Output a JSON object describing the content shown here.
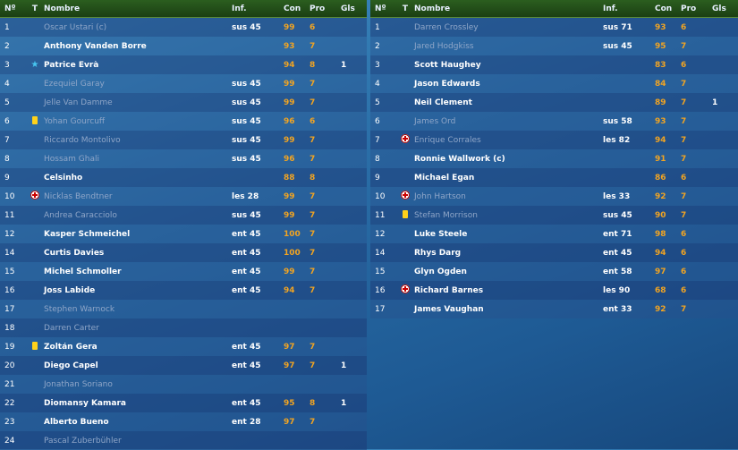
{
  "headers": {
    "num": "Nº",
    "t": "T",
    "name": "Nombre",
    "inf": "Inf.",
    "con": "Con",
    "pro": "Pro",
    "gls": "Gls"
  },
  "left_rows": [
    {
      "num": "1",
      "icon": "",
      "name": "Oscar Ustari (c)",
      "inf": "sus 45",
      "con": "99",
      "pro": "6",
      "gls": "",
      "dim": true
    },
    {
      "num": "2",
      "icon": "",
      "name": "Anthony Vanden Borre",
      "inf": "",
      "con": "93",
      "pro": "7",
      "gls": "",
      "dim": false
    },
    {
      "num": "3",
      "icon": "star",
      "name": "Patrice Evrà",
      "inf": "",
      "con": "94",
      "pro": "8",
      "gls": "1",
      "dim": false
    },
    {
      "num": "4",
      "icon": "",
      "name": "Ezequiel Garay",
      "inf": "sus 45",
      "con": "99",
      "pro": "7",
      "gls": "",
      "dim": true
    },
    {
      "num": "5",
      "icon": "",
      "name": "Jelle Van Damme",
      "inf": "sus 45",
      "con": "99",
      "pro": "7",
      "gls": "",
      "dim": true
    },
    {
      "num": "6",
      "icon": "card",
      "name": "Yohan Gourcuff",
      "inf": "sus 45",
      "con": "96",
      "pro": "6",
      "gls": "",
      "dim": true
    },
    {
      "num": "7",
      "icon": "",
      "name": "Riccardo Montolivo",
      "inf": "sus 45",
      "con": "99",
      "pro": "7",
      "gls": "",
      "dim": true
    },
    {
      "num": "8",
      "icon": "",
      "name": "Hossam Ghali",
      "inf": "sus 45",
      "con": "96",
      "pro": "7",
      "gls": "",
      "dim": true
    },
    {
      "num": "9",
      "icon": "",
      "name": "Celsinho",
      "inf": "",
      "con": "88",
      "pro": "8",
      "gls": "",
      "dim": false
    },
    {
      "num": "10",
      "icon": "injury",
      "name": "Nicklas Bendtner",
      "inf": "les 28",
      "con": "99",
      "pro": "7",
      "gls": "",
      "dim": true
    },
    {
      "num": "11",
      "icon": "",
      "name": "Andrea Caracciolo",
      "inf": "sus 45",
      "con": "99",
      "pro": "7",
      "gls": "",
      "dim": true
    },
    {
      "num": "12",
      "icon": "",
      "name": "Kasper Schmeichel",
      "inf": "ent 45",
      "con": "100",
      "pro": "7",
      "gls": "",
      "dim": false
    },
    {
      "num": "14",
      "icon": "",
      "name": "Curtis Davies",
      "inf": "ent 45",
      "con": "100",
      "pro": "7",
      "gls": "",
      "dim": false
    },
    {
      "num": "15",
      "icon": "",
      "name": "Michel Schmoller",
      "inf": "ent 45",
      "con": "99",
      "pro": "7",
      "gls": "",
      "dim": false
    },
    {
      "num": "16",
      "icon": "",
      "name": "Joss Labide",
      "inf": "ent 45",
      "con": "94",
      "pro": "7",
      "gls": "",
      "dim": false
    },
    {
      "num": "17",
      "icon": "",
      "name": "Stephen Warnock",
      "inf": "",
      "con": "",
      "pro": "",
      "gls": "",
      "dim": true
    },
    {
      "num": "18",
      "icon": "",
      "name": "Darren Carter",
      "inf": "",
      "con": "",
      "pro": "",
      "gls": "",
      "dim": true
    },
    {
      "num": "19",
      "icon": "card",
      "name": "Zoltán Gera",
      "inf": "ent 45",
      "con": "97",
      "pro": "7",
      "gls": "",
      "dim": false
    },
    {
      "num": "20",
      "icon": "",
      "name": "Diego Capel",
      "inf": "ent 45",
      "con": "97",
      "pro": "7",
      "gls": "1",
      "dim": false
    },
    {
      "num": "21",
      "icon": "",
      "name": "Jonathan Soriano",
      "inf": "",
      "con": "",
      "pro": "",
      "gls": "",
      "dim": true
    },
    {
      "num": "22",
      "icon": "",
      "name": "Diomansy Kamara",
      "inf": "ent 45",
      "con": "95",
      "pro": "8",
      "gls": "1",
      "dim": false
    },
    {
      "num": "23",
      "icon": "",
      "name": "Alberto Bueno",
      "inf": "ent 28",
      "con": "97",
      "pro": "7",
      "gls": "",
      "dim": false
    },
    {
      "num": "24",
      "icon": "",
      "name": "Pascal Zuberbühler",
      "inf": "",
      "con": "",
      "pro": "",
      "gls": "",
      "dim": true
    }
  ],
  "right_rows": [
    {
      "num": "1",
      "icon": "",
      "name": "Darren Crossley",
      "inf": "sus 71",
      "con": "93",
      "pro": "6",
      "gls": "",
      "dim": true
    },
    {
      "num": "2",
      "icon": "",
      "name": "Jared Hodgkiss",
      "inf": "sus 45",
      "con": "95",
      "pro": "7",
      "gls": "",
      "dim": true
    },
    {
      "num": "3",
      "icon": "",
      "name": "Scott Haughey",
      "inf": "",
      "con": "83",
      "pro": "6",
      "gls": "",
      "dim": false
    },
    {
      "num": "4",
      "icon": "",
      "name": "Jason Edwards",
      "inf": "",
      "con": "84",
      "pro": "7",
      "gls": "",
      "dim": false
    },
    {
      "num": "5",
      "icon": "",
      "name": "Neil Clement",
      "inf": "",
      "con": "89",
      "pro": "7",
      "gls": "1",
      "dim": false
    },
    {
      "num": "6",
      "icon": "",
      "name": "James Ord",
      "inf": "sus 58",
      "con": "93",
      "pro": "7",
      "gls": "",
      "dim": true
    },
    {
      "num": "7",
      "icon": "injury",
      "name": "Enrique Corrales",
      "inf": "les 82",
      "con": "94",
      "pro": "7",
      "gls": "",
      "dim": true
    },
    {
      "num": "8",
      "icon": "",
      "name": "Ronnie Wallwork (c)",
      "inf": "",
      "con": "91",
      "pro": "7",
      "gls": "",
      "dim": false
    },
    {
      "num": "9",
      "icon": "",
      "name": "Michael Egan",
      "inf": "",
      "con": "86",
      "pro": "6",
      "gls": "",
      "dim": false
    },
    {
      "num": "10",
      "icon": "injury",
      "name": "John Hartson",
      "inf": "les 33",
      "con": "92",
      "pro": "7",
      "gls": "",
      "dim": true
    },
    {
      "num": "11",
      "icon": "card",
      "name": "Stefan Morrison",
      "inf": "sus 45",
      "con": "90",
      "pro": "7",
      "gls": "",
      "dim": true
    },
    {
      "num": "12",
      "icon": "",
      "name": "Luke Steele",
      "inf": "ent 71",
      "con": "98",
      "pro": "6",
      "gls": "",
      "dim": false
    },
    {
      "num": "14",
      "icon": "",
      "name": "Rhys Darg",
      "inf": "ent 45",
      "con": "94",
      "pro": "6",
      "gls": "",
      "dim": false
    },
    {
      "num": "15",
      "icon": "",
      "name": "Glyn Ogden",
      "inf": "ent 58",
      "con": "97",
      "pro": "6",
      "gls": "",
      "dim": false
    },
    {
      "num": "16",
      "icon": "injury",
      "name": "Richard Barnes",
      "inf": "les 90",
      "con": "68",
      "pro": "6",
      "gls": "",
      "dim": false
    },
    {
      "num": "17",
      "icon": "",
      "name": "James Vaughan",
      "inf": "ent 33",
      "con": "92",
      "pro": "7",
      "gls": "",
      "dim": false
    }
  ]
}
